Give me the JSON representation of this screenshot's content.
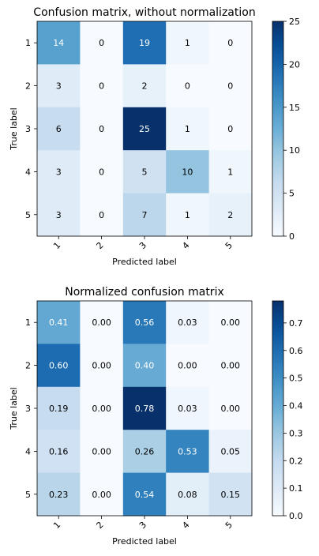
{
  "chart_data": [
    {
      "type": "heatmap",
      "title": "Confusion matrix, without normalization",
      "xlabel": "Predicted label",
      "ylabel": "True label",
      "x_tick_labels": [
        "1",
        "2",
        "3",
        "4",
        "5"
      ],
      "y_tick_labels": [
        "1",
        "2",
        "3",
        "4",
        "5"
      ],
      "values": [
        [
          14,
          0,
          19,
          1,
          0
        ],
        [
          3,
          0,
          2,
          0,
          0
        ],
        [
          6,
          0,
          25,
          1,
          0
        ],
        [
          3,
          0,
          5,
          10,
          1
        ],
        [
          3,
          0,
          7,
          1,
          2
        ]
      ],
      "cell_labels": [
        [
          "14",
          "0",
          "19",
          "1",
          "0"
        ],
        [
          "3",
          "0",
          "2",
          "0",
          "0"
        ],
        [
          "6",
          "0",
          "25",
          "1",
          "0"
        ],
        [
          "3",
          "0",
          "5",
          "10",
          "1"
        ],
        [
          "3",
          "0",
          "7",
          "1",
          "2"
        ]
      ],
      "colormap": "Blues",
      "vmin": 0,
      "vmax": 25,
      "colorbar_ticks": [
        0,
        5,
        10,
        15,
        20,
        25
      ],
      "colorbar_tick_labels": [
        "0",
        "5",
        "10",
        "15",
        "20",
        "25"
      ],
      "x_tick_rotation": "45 degrees",
      "grid": false
    },
    {
      "type": "heatmap",
      "title": "Normalized confusion matrix",
      "xlabel": "Predicted label",
      "ylabel": "True label",
      "x_tick_labels": [
        "1",
        "2",
        "3",
        "4",
        "5"
      ],
      "y_tick_labels": [
        "1",
        "2",
        "3",
        "4",
        "5"
      ],
      "values": [
        [
          0.41,
          0.0,
          0.56,
          0.03,
          0.0
        ],
        [
          0.6,
          0.0,
          0.4,
          0.0,
          0.0
        ],
        [
          0.19,
          0.0,
          0.78,
          0.03,
          0.0
        ],
        [
          0.16,
          0.0,
          0.26,
          0.53,
          0.05
        ],
        [
          0.23,
          0.0,
          0.54,
          0.08,
          0.15
        ]
      ],
      "cell_labels": [
        [
          "0.41",
          "0.00",
          "0.56",
          "0.03",
          "0.00"
        ],
        [
          "0.60",
          "0.00",
          "0.40",
          "0.00",
          "0.00"
        ],
        [
          "0.19",
          "0.00",
          "0.78",
          "0.03",
          "0.00"
        ],
        [
          "0.16",
          "0.00",
          "0.26",
          "0.53",
          "0.05"
        ],
        [
          "0.23",
          "0.00",
          "0.54",
          "0.08",
          "0.15"
        ]
      ],
      "colormap": "Blues",
      "vmin": 0,
      "vmax": 0.78,
      "colorbar_ticks": [
        0.0,
        0.1,
        0.2,
        0.3,
        0.4,
        0.5,
        0.6,
        0.7
      ],
      "colorbar_tick_labels": [
        "0.0",
        "0.1",
        "0.2",
        "0.3",
        "0.4",
        "0.5",
        "0.6",
        "0.7"
      ],
      "x_tick_rotation": "45 degrees",
      "grid": false
    }
  ]
}
